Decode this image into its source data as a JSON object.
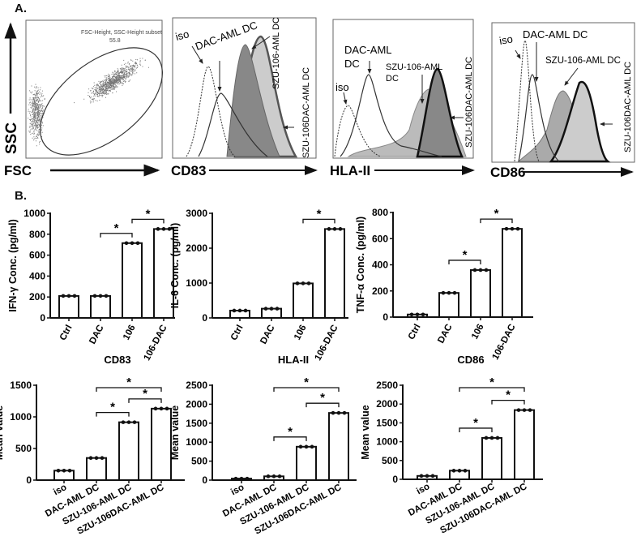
{
  "panel_a": {
    "label": "A.",
    "scatter": {
      "xlabel": "FSC",
      "ylabel": "SSC",
      "gate_name": "FSC-Height, SSC-Height subset",
      "gate_value": "55.8"
    },
    "histograms": [
      {
        "marker": "CD83",
        "labels": [
          "iso",
          "DAC-AML DC",
          "SZU-106-AML DC",
          "SZU-106DAC-AML DC"
        ]
      },
      {
        "marker": "HLA-II",
        "labels": [
          "iso",
          "DAC-AML",
          "DC",
          "SZU-106-AML",
          "DC",
          "SZU-106DAC-AML DC"
        ]
      },
      {
        "marker": "CD86",
        "labels": [
          "iso",
          "DAC-AML DC",
          "SZU-106-AML DC",
          "SZU-106DAC-AML DC"
        ]
      }
    ]
  },
  "panel_b": {
    "label": "B."
  },
  "chart_data": [
    {
      "type": "bar",
      "title": "",
      "ylabel": "IFN-γ Conc. (pg/ml)",
      "categories": [
        "Ctrl",
        "DAC",
        "106",
        "106-DAC"
      ],
      "values": [
        210,
        210,
        715,
        850
      ],
      "ylim": [
        0,
        1000
      ],
      "yticks": [
        0,
        200,
        400,
        600,
        800,
        1000
      ],
      "significance": [
        {
          "pair": [
            1,
            2
          ],
          "label": "*"
        },
        {
          "pair": [
            2,
            3
          ],
          "label": "*"
        }
      ]
    },
    {
      "type": "bar",
      "title": "",
      "ylabel": "IL-6 Conc. (pg/ml)",
      "categories": [
        "Ctrl",
        "DAC",
        "106",
        "106-DAC"
      ],
      "values": [
        210,
        265,
        990,
        2550
      ],
      "ylim": [
        0,
        3000
      ],
      "yticks": [
        0,
        1000,
        2000,
        3000
      ],
      "significance": [
        {
          "pair": [
            2,
            3
          ],
          "label": "*"
        }
      ]
    },
    {
      "type": "bar",
      "title": "",
      "ylabel": "TNF-α Conc. (pg/ml)",
      "categories": [
        "Ctrl",
        "DAC",
        "106",
        "106-DAC"
      ],
      "values": [
        20,
        185,
        360,
        675
      ],
      "ylim": [
        0,
        800
      ],
      "yticks": [
        0,
        200,
        400,
        600,
        800
      ],
      "significance": [
        {
          "pair": [
            1,
            2
          ],
          "label": "*"
        },
        {
          "pair": [
            2,
            3
          ],
          "label": "*"
        }
      ]
    },
    {
      "type": "bar",
      "title": "CD83",
      "ylabel": "Mean value",
      "categories": [
        "iso",
        "DAC-AML DC",
        "SZU-106-AML DC",
        "SZU-106DAC-AML DC"
      ],
      "values": [
        150,
        350,
        915,
        1130
      ],
      "ylim": [
        0,
        1500
      ],
      "yticks": [
        0,
        500,
        1000,
        1500
      ],
      "significance": [
        {
          "pair": [
            1,
            2
          ],
          "label": "*"
        },
        {
          "pair": [
            2,
            3
          ],
          "label": "*"
        },
        {
          "pair": [
            1,
            3
          ],
          "label": "*"
        }
      ]
    },
    {
      "type": "bar",
      "title": "HLA-II",
      "ylabel": "Mean value",
      "categories": [
        "iso",
        "DAC-AML DC",
        "SZU-106-AML DC",
        "SZU-106DAC-AML DC"
      ],
      "values": [
        40,
        100,
        880,
        1770
      ],
      "ylim": [
        0,
        2500
      ],
      "yticks": [
        0,
        500,
        1000,
        1500,
        2000,
        2500
      ],
      "significance": [
        {
          "pair": [
            1,
            2
          ],
          "label": "*"
        },
        {
          "pair": [
            2,
            3
          ],
          "label": "*"
        },
        {
          "pair": [
            1,
            3
          ],
          "label": "*"
        }
      ]
    },
    {
      "type": "bar",
      "title": "CD86",
      "ylabel": "Mean value",
      "categories": [
        "iso",
        "DAC-AML DC",
        "SZU-106-AML DC",
        "SZU-106DAC-AML DC"
      ],
      "values": [
        90,
        230,
        1100,
        1840
      ],
      "ylim": [
        0,
        2500
      ],
      "yticks": [
        0,
        500,
        1000,
        1500,
        2000,
        2500
      ],
      "significance": [
        {
          "pair": [
            1,
            2
          ],
          "label": "*"
        },
        {
          "pair": [
            2,
            3
          ],
          "label": "*"
        },
        {
          "pair": [
            1,
            3
          ],
          "label": "*"
        }
      ]
    }
  ]
}
